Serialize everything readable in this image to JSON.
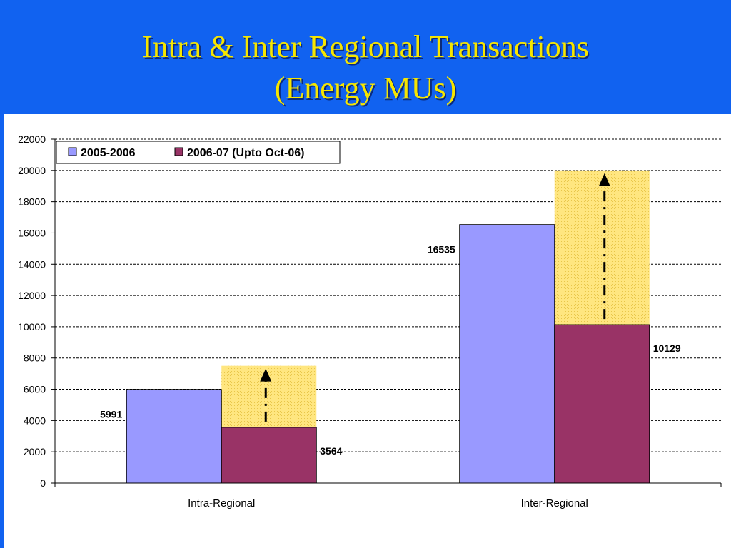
{
  "slide": {
    "title_line1": "Intra & Inter Regional Transactions",
    "title_line2": "(Energy MUs)"
  },
  "colors": {
    "header_bg": "#1162f0",
    "title_text": "#f6e600",
    "series_2005": "#9999ff",
    "series_2006": "#993366",
    "projection_fill": "#ffe680"
  },
  "chart_data": {
    "type": "bar",
    "categories": [
      "Intra-Regional",
      "Inter-Regional"
    ],
    "series": [
      {
        "name": "2005-2006",
        "values": [
          5991,
          16535
        ]
      },
      {
        "name": "2006-07 (Upto Oct-06)",
        "values": [
          3564,
          10129
        ]
      }
    ],
    "projection_targets": [
      7500,
      20000
    ],
    "data_labels": [
      [
        "5991",
        "3564"
      ],
      [
        "16535",
        "10129"
      ]
    ],
    "ylim": [
      0,
      22000
    ],
    "yticks": [
      0,
      2000,
      4000,
      6000,
      8000,
      10000,
      12000,
      14000,
      16000,
      18000,
      20000,
      22000
    ],
    "grid": true,
    "legend": "top-left",
    "xlabel": "",
    "ylabel": ""
  }
}
